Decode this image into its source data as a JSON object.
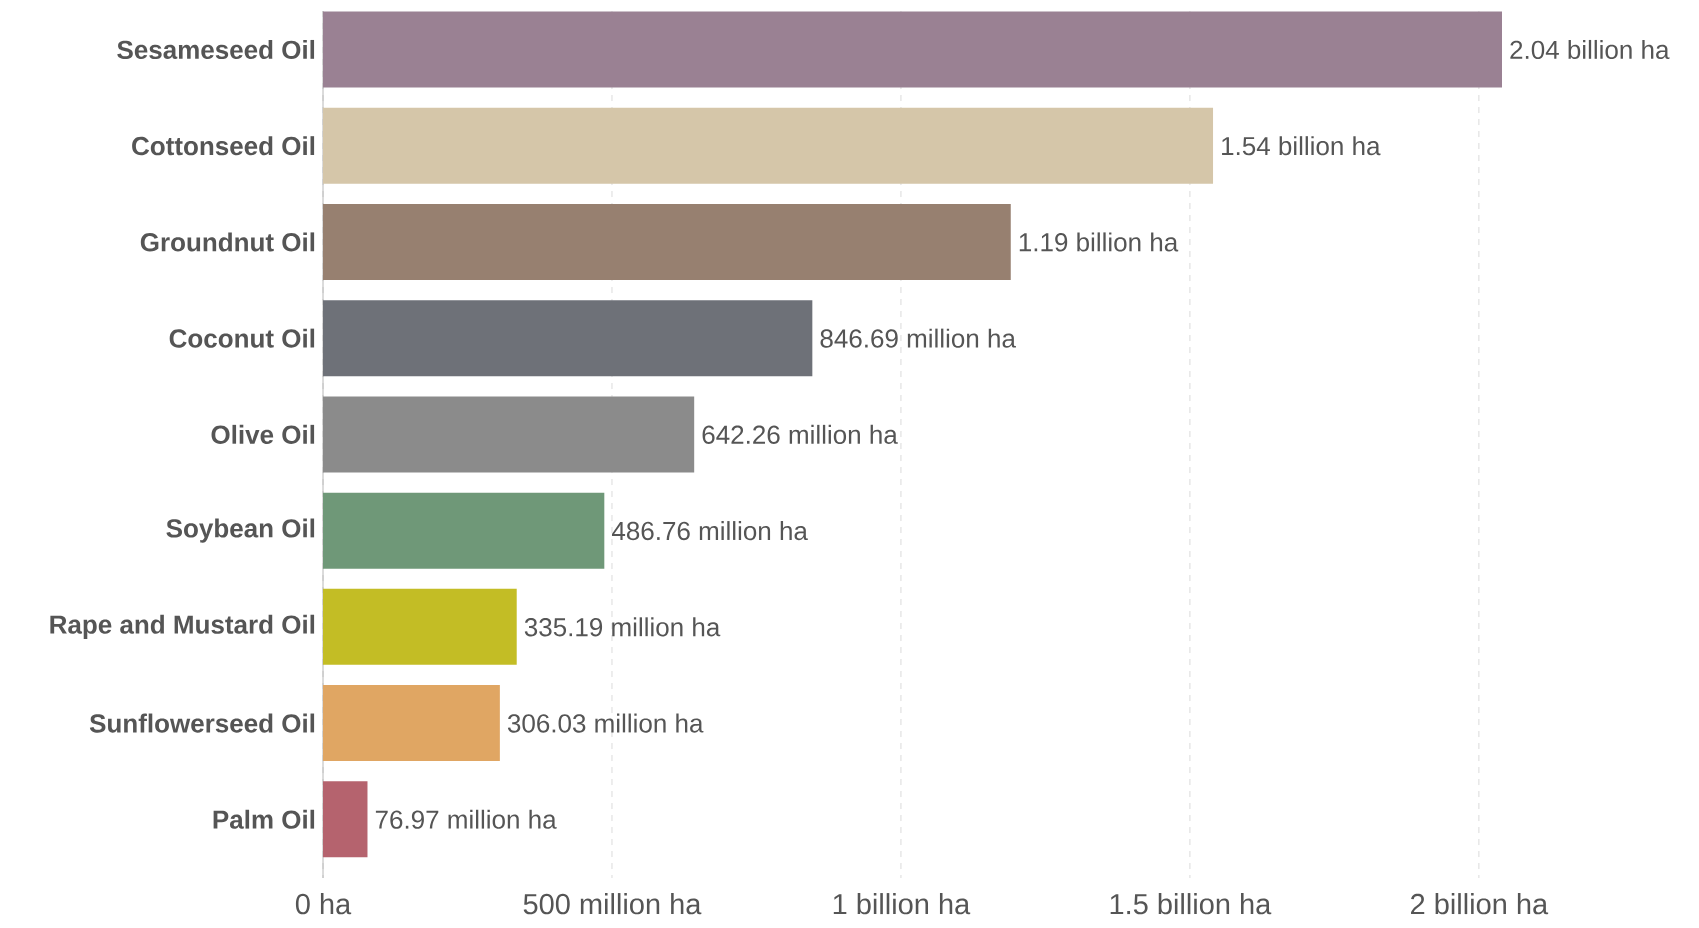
{
  "chart_data": {
    "type": "bar",
    "orientation": "horizontal",
    "categories": [
      "Sesameseed Oil",
      "Cottonseed Oil",
      "Groundnut Oil",
      "Coconut Oil",
      "Olive Oil",
      "Soybean Oil",
      "Rape and Mustard Oil",
      "Sunflowerseed Oil",
      "Palm Oil"
    ],
    "values": [
      2040000000,
      1540000000,
      1190000000,
      846690000,
      642260000,
      486760000,
      335190000,
      306030000,
      76970000
    ],
    "value_labels": [
      "2.04 billion ha",
      "1.54 billion ha",
      "1.19 billion ha",
      "846.69 million ha",
      "642.26 million ha",
      "486.76 million ha",
      "335.19 million ha",
      "306.03 million ha",
      "76.97 million ha"
    ],
    "colors": [
      "#9a8193",
      "#d5c6a9",
      "#978070",
      "#6e7178",
      "#8b8b8b",
      "#6f9878",
      "#c3bd25",
      "#e0a663",
      "#b5636e"
    ],
    "xlim": [
      0,
      2040000000
    ],
    "xticks": [
      {
        "value": 0,
        "label": "0 ha"
      },
      {
        "value": 500000000,
        "label": "500 million ha"
      },
      {
        "value": 1000000000,
        "label": "1 billion ha"
      },
      {
        "value": 1500000000,
        "label": "1.5 billion ha"
      },
      {
        "value": 2000000000,
        "label": "2 billion ha"
      }
    ],
    "grid": "x"
  }
}
